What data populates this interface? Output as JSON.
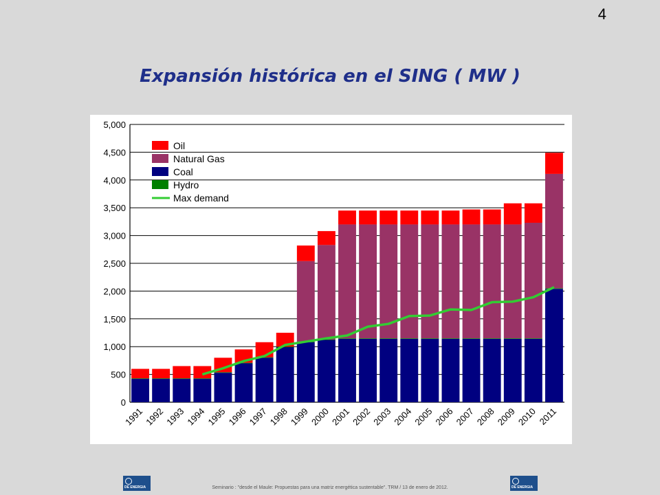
{
  "slide": {
    "number": "4",
    "title": "Expansión histórica en el SING ( MW )"
  },
  "footer": {
    "text": "Seminario : \"desde el Maule: Propuestas para una matriz energética sustentable\".  TRM  /  13 de enero de 2012.",
    "logo_text": "DE ENERGIA"
  },
  "colors": {
    "oil": "#ff0000",
    "natural_gas": "#993366",
    "coal": "#000080",
    "hydro": "#008000",
    "max_demand": "#33cc33"
  },
  "chart_data": {
    "type": "bar",
    "stacked": true,
    "categories": [
      "1991",
      "1992",
      "1993",
      "1994",
      "1995",
      "1996",
      "1997",
      "1998",
      "1999",
      "2000",
      "2001",
      "2002",
      "2003",
      "2004",
      "2005",
      "2006",
      "2007",
      "2008",
      "2009",
      "2010",
      "2011"
    ],
    "series": [
      {
        "name": "Coal",
        "color": "#000080",
        "values": [
          420,
          420,
          420,
          420,
          530,
          700,
          800,
          990,
          1080,
          1120,
          1140,
          1140,
          1140,
          1140,
          1140,
          1140,
          1140,
          1140,
          1140,
          1140,
          2040
        ]
      },
      {
        "name": "Hydro",
        "color": "#008000",
        "values": [
          10,
          10,
          10,
          10,
          10,
          10,
          10,
          10,
          10,
          10,
          10,
          10,
          10,
          10,
          10,
          10,
          10,
          10,
          10,
          10,
          10
        ]
      },
      {
        "name": "Natural Gas",
        "color": "#993366",
        "values": [
          0,
          0,
          0,
          0,
          0,
          0,
          0,
          0,
          1450,
          1700,
          2050,
          2050,
          2050,
          2050,
          2050,
          2050,
          2050,
          2050,
          2050,
          2080,
          2060
        ]
      },
      {
        "name": "Oil",
        "color": "#ff0000",
        "values": [
          170,
          170,
          220,
          220,
          260,
          240,
          270,
          250,
          280,
          250,
          250,
          250,
          250,
          250,
          250,
          250,
          270,
          270,
          380,
          350,
          380
        ]
      }
    ],
    "line_series": {
      "name": "Max demand",
      "color": "#33cc33",
      "values": [
        null,
        null,
        null,
        500,
        610,
        740,
        830,
        1030,
        1090,
        1150,
        1200,
        1360,
        1410,
        1550,
        1560,
        1670,
        1660,
        1800,
        1810,
        1890,
        2070
      ]
    },
    "legend": [
      "Oil",
      "Natural Gas",
      "Coal",
      "Hydro",
      "Max demand"
    ],
    "y_ticks": [
      "0",
      "500",
      "1,000",
      "1,500",
      "2,000",
      "2,500",
      "3,000",
      "3,500",
      "4,000",
      "4,500",
      "5,000"
    ],
    "ylim": [
      0,
      5000
    ],
    "y_step": 500,
    "grid": true,
    "legend_position": "top-left",
    "title": "",
    "xlabel": "",
    "ylabel": ""
  }
}
